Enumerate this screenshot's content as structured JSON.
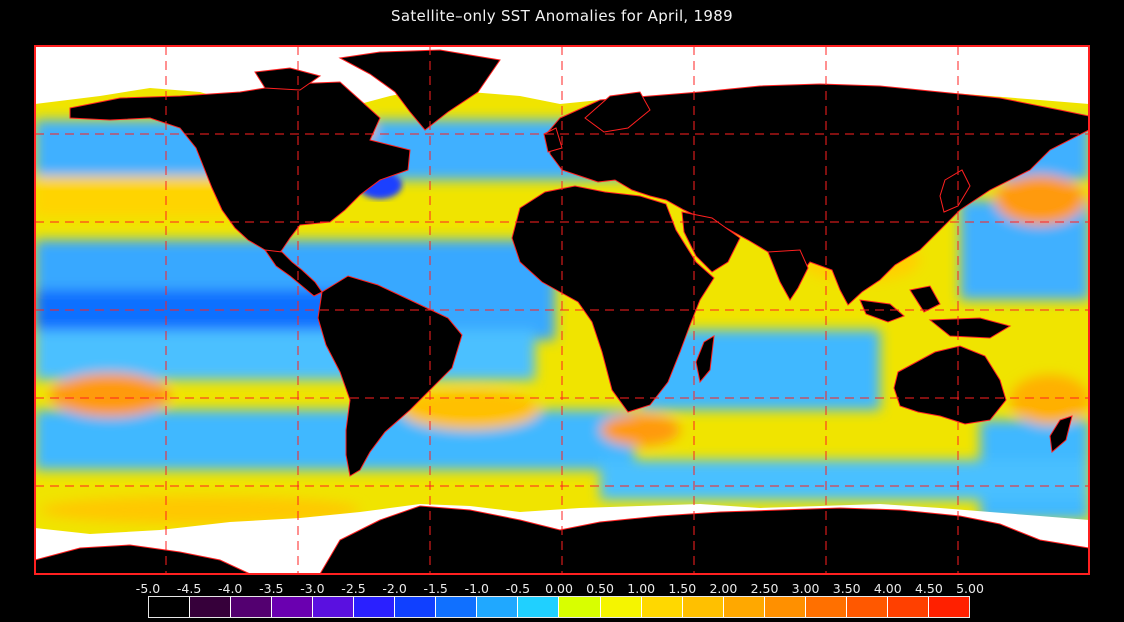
{
  "title": "Satellite–only SST Anomalies for April, 1989",
  "map": {
    "projection": "equirectangular",
    "variable": "sea surface temperature anomaly",
    "land_color": "#000000",
    "ice_color": "#ffffff",
    "grid_color": "#ff2020",
    "border_color": "#ff2020"
  },
  "legend": {
    "labels": [
      "-5.0",
      "-4.5",
      "-4.0",
      "-3.5",
      "-3.0",
      "-2.5",
      "-2.0",
      "-1.5",
      "-1.0",
      "-0.5",
      "0.00",
      "0.50",
      "1.00",
      "1.50",
      "2.00",
      "2.50",
      "3.00",
      "3.50",
      "4.00",
      "4.50",
      "5.00"
    ],
    "colors": [
      "#000000",
      "#36003a",
      "#530070",
      "#6a00b0",
      "#5a10e0",
      "#2a20ff",
      "#1040ff",
      "#1070ff",
      "#20a8ff",
      "#20d0ff",
      "#d8ff00",
      "#f5f500",
      "#ffd800",
      "#ffc000",
      "#ffa800",
      "#ff9000",
      "#ff7000",
      "#ff5800",
      "#ff4000",
      "#ff2000"
    ]
  }
}
